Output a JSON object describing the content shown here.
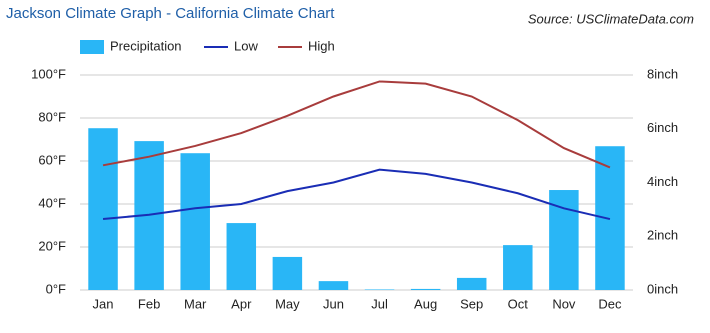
{
  "chart_data": {
    "type": "bar",
    "title": "Jackson Climate Graph - California Climate Chart",
    "source": "Source: USClimateData.com",
    "categories": [
      "Jan",
      "Feb",
      "Mar",
      "Apr",
      "May",
      "Jun",
      "Jul",
      "Aug",
      "Sep",
      "Oct",
      "Nov",
      "Dec"
    ],
    "series": [
      {
        "name": "Precipitation",
        "type": "bar",
        "axis": "y2",
        "color": "#29b6f6",
        "values": [
          6.02,
          5.54,
          5.09,
          2.49,
          1.23,
          0.33,
          0.02,
          0.04,
          0.45,
          1.67,
          3.72,
          5.35
        ]
      },
      {
        "name": "Low",
        "type": "line",
        "color": "#1a2db5",
        "values": [
          33,
          35,
          38,
          40,
          46,
          50,
          56,
          54,
          50,
          45,
          38,
          33
        ]
      },
      {
        "name": "High",
        "type": "line",
        "color": "#a83c3c",
        "values": [
          58,
          62,
          67,
          73,
          81,
          90,
          97,
          96,
          90,
          79,
          66,
          57
        ]
      }
    ],
    "ylim": [
      0,
      100
    ],
    "yticks": [
      {
        "value": 0,
        "label": "0°F"
      },
      {
        "value": 20,
        "label": "20°F"
      },
      {
        "value": 40,
        "label": "40°F"
      },
      {
        "value": 60,
        "label": "60°F"
      },
      {
        "value": 80,
        "label": "80°F"
      },
      {
        "value": 100,
        "label": "100°F"
      }
    ],
    "y2lim": [
      0,
      8
    ],
    "y2ticks": [
      {
        "value": 0,
        "label": "0inch"
      },
      {
        "value": 2,
        "label": "2inch"
      },
      {
        "value": 4,
        "label": "4inch"
      },
      {
        "value": 6,
        "label": "6inch"
      },
      {
        "value": 8,
        "label": "8inch"
      }
    ],
    "grid": true
  }
}
